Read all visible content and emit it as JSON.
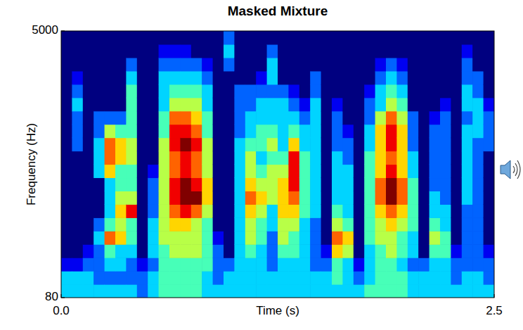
{
  "chart_data": {
    "type": "heatmap",
    "title": "Masked Mixture",
    "x_label": "Time (s)",
    "y_label": "Frequency (Hz)",
    "xlim": [
      0,
      2.5
    ],
    "xticks": [
      {
        "value": 0,
        "label": "0.0"
      },
      2.5
    ],
    "ylim": [
      80,
      5000
    ],
    "yticks": [
      80,
      5000
    ],
    "grid": false,
    "clim": [
      0,
      9
    ],
    "cells": [
      [
        3,
        3,
        1,
        0,
        0,
        0,
        0,
        0,
        0,
        0,
        0,
        0,
        0,
        0,
        0,
        0,
        0,
        0,
        0,
        0
      ],
      [
        3,
        3,
        1,
        0,
        0,
        0,
        0,
        0,
        0,
        0,
        0,
        2,
        2,
        2,
        3,
        2,
        1,
        0,
        0,
        0
      ],
      [
        3,
        3,
        2,
        1,
        0,
        0,
        0,
        0,
        0,
        0,
        0,
        0,
        0,
        0,
        0,
        0,
        0,
        0,
        0,
        0
      ],
      [
        3,
        2,
        2,
        2,
        3,
        2,
        0,
        0,
        0,
        3,
        3,
        3,
        2,
        2,
        0,
        0,
        0,
        0,
        0,
        0
      ],
      [
        3,
        2,
        3,
        4,
        7,
        4,
        3,
        3,
        3,
        6,
        7,
        7,
        5,
        2,
        0,
        0,
        0,
        0,
        0,
        0
      ],
      [
        3,
        2,
        3,
        3,
        6,
        5,
        6,
        5,
        4,
        4,
        6,
        6,
        4,
        2,
        0,
        0,
        0,
        0,
        0,
        0
      ],
      [
        3,
        2,
        2,
        3,
        4,
        4,
        8,
        5,
        4,
        4,
        5,
        5,
        4,
        4,
        4,
        4,
        3,
        2,
        0,
        0
      ],
      [
        2,
        2,
        1,
        0,
        0,
        0,
        0,
        0,
        0,
        0,
        0,
        0,
        0,
        0,
        0,
        0,
        0,
        0,
        0,
        0
      ],
      [
        3,
        3,
        2,
        3,
        3,
        3,
        2,
        2,
        2,
        1,
        0,
        0,
        0,
        0,
        0,
        0,
        0,
        0,
        0,
        0
      ],
      [
        4,
        4,
        4,
        4,
        5,
        5,
        5,
        5,
        5,
        5,
        5,
        5,
        4,
        4,
        3,
        3,
        3,
        2,
        1,
        0
      ],
      [
        4,
        4,
        4,
        5,
        5,
        6,
        7,
        8,
        8,
        7,
        7,
        8,
        8,
        7,
        5,
        4,
        3,
        2,
        1,
        0
      ],
      [
        4,
        4,
        4,
        5,
        5,
        6,
        8,
        9,
        9,
        8,
        8,
        9,
        8,
        7,
        5,
        4,
        3,
        2,
        1,
        0
      ],
      [
        4,
        4,
        4,
        5,
        5,
        5,
        7,
        9,
        8,
        7,
        7,
        8,
        7,
        6,
        5,
        4,
        3,
        2,
        0,
        0
      ],
      [
        3,
        3,
        4,
        4,
        4,
        4,
        5,
        6,
        6,
        5,
        5,
        5,
        4,
        4,
        3,
        3,
        2,
        1,
        0,
        0
      ],
      [
        3,
        2,
        2,
        2,
        1,
        0,
        0,
        0,
        0,
        0,
        0,
        0,
        0,
        0,
        0,
        0,
        0,
        0,
        0,
        0
      ],
      [
        3,
        3,
        2,
        0,
        0,
        0,
        0,
        0,
        0,
        0,
        0,
        0,
        0,
        0,
        0,
        0,
        0,
        2,
        3,
        2
      ],
      [
        3,
        3,
        3,
        3,
        3,
        3,
        3,
        3,
        3,
        3,
        3,
        3,
        2,
        2,
        2,
        2,
        0,
        0,
        0,
        0
      ],
      [
        3,
        3,
        3,
        4,
        5,
        5,
        6,
        7,
        6,
        5,
        5,
        4,
        3,
        3,
        2,
        2,
        0,
        0,
        0,
        0
      ],
      [
        3,
        3,
        3,
        3,
        4,
        4,
        5,
        6,
        5,
        4,
        3,
        4,
        4,
        3,
        3,
        2,
        1,
        0,
        0,
        0
      ],
      [
        3,
        3,
        2,
        2,
        2,
        3,
        3,
        5,
        5,
        5,
        4,
        5,
        4,
        3,
        3,
        2,
        3,
        3,
        2,
        0
      ],
      [
        3,
        3,
        3,
        4,
        5,
        5,
        6,
        6,
        6,
        5,
        4,
        3,
        3,
        3,
        3,
        2,
        0,
        0,
        0,
        0
      ],
      [
        3,
        3,
        3,
        4,
        4,
        5,
        6,
        7,
        8,
        8,
        8,
        6,
        4,
        3,
        2,
        1,
        0,
        0,
        0,
        0
      ],
      [
        3,
        3,
        3,
        3,
        3,
        3,
        4,
        4,
        4,
        4,
        4,
        3,
        3,
        2,
        1,
        0,
        0,
        0,
        0,
        0
      ],
      [
        3,
        3,
        2,
        2,
        2,
        2,
        3,
        3,
        3,
        3,
        3,
        3,
        3,
        3,
        3,
        2,
        2,
        0,
        0,
        0
      ],
      [
        3,
        3,
        2,
        1,
        0,
        0,
        0,
        0,
        0,
        0,
        0,
        0,
        0,
        0,
        0,
        0,
        0,
        0,
        0,
        0
      ],
      [
        3,
        4,
        4,
        6,
        7,
        5,
        4,
        3,
        3,
        3,
        3,
        2,
        2,
        2,
        1,
        0,
        0,
        0,
        0,
        0
      ],
      [
        3,
        3,
        3,
        5,
        6,
        4,
        3,
        3,
        3,
        3,
        2,
        2,
        1,
        0,
        0,
        0,
        0,
        0,
        0,
        0
      ],
      [
        3,
        2,
        1,
        0,
        0,
        0,
        0,
        0,
        0,
        0,
        0,
        0,
        0,
        0,
        0,
        0,
        0,
        0,
        0,
        0
      ],
      [
        4,
        3,
        3,
        3,
        4,
        4,
        4,
        4,
        4,
        4,
        4,
        3,
        3,
        2,
        2,
        1,
        0,
        0,
        0,
        0
      ],
      [
        4,
        4,
        4,
        4,
        5,
        5,
        6,
        7,
        7,
        6,
        6,
        6,
        6,
        5,
        3,
        3,
        2,
        1,
        0,
        0
      ],
      [
        4,
        4,
        4,
        5,
        5,
        6,
        7,
        9,
        9,
        8,
        7,
        8,
        8,
        7,
        5,
        4,
        3,
        2,
        0,
        0
      ],
      [
        4,
        4,
        3,
        4,
        4,
        5,
        6,
        7,
        7,
        6,
        6,
        6,
        6,
        5,
        4,
        3,
        2,
        1,
        0,
        0
      ],
      [
        3,
        3,
        2,
        3,
        3,
        4,
        4,
        4,
        4,
        3,
        3,
        2,
        2,
        2,
        0,
        0,
        0,
        0,
        0,
        0
      ],
      [
        3,
        3,
        2,
        0,
        0,
        0,
        0,
        0,
        0,
        0,
        0,
        0,
        0,
        0,
        0,
        0,
        0,
        0,
        0,
        0
      ],
      [
        3,
        3,
        3,
        4,
        5,
        4,
        3,
        3,
        2,
        2,
        2,
        2,
        2,
        1,
        0,
        0,
        0,
        0,
        0,
        0
      ],
      [
        3,
        3,
        3,
        4,
        4,
        3,
        3,
        2,
        2,
        2,
        2,
        2,
        2,
        2,
        1,
        0,
        0,
        0,
        0,
        0
      ],
      [
        3,
        2,
        2,
        1,
        0,
        0,
        0,
        0,
        0,
        0,
        0,
        0,
        0,
        0,
        0,
        0,
        0,
        0,
        0,
        0
      ],
      [
        3,
        3,
        2,
        2,
        2,
        2,
        2,
        3,
        3,
        3,
        3,
        3,
        3,
        2,
        3,
        3,
        2,
        2,
        1,
        0
      ],
      [
        3,
        3,
        2,
        2,
        2,
        2,
        2,
        2,
        2,
        2,
        2,
        2,
        3,
        3,
        3,
        2,
        2,
        0,
        0,
        0
      ],
      [
        3,
        2,
        2,
        1,
        0,
        0,
        0,
        0,
        0,
        0,
        0,
        2,
        2,
        2,
        1,
        0,
        0,
        0,
        0,
        0
      ]
    ]
  }
}
